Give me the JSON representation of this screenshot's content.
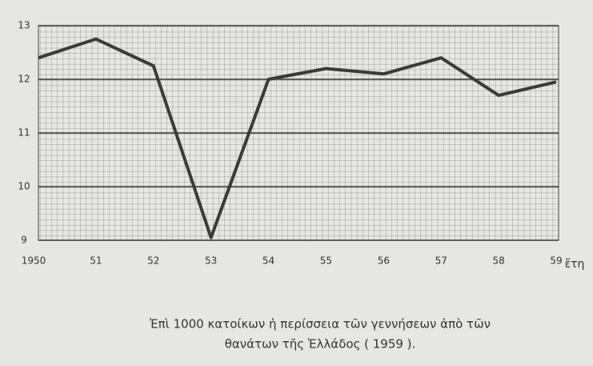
{
  "chart_data": {
    "type": "line",
    "categories": [
      "1950",
      "51",
      "52",
      "53",
      "54",
      "55",
      "56",
      "57",
      "58",
      "59"
    ],
    "x_label": "ἔτη",
    "series": [
      {
        "color": "#3a3a3a",
        "values": [
          12.4,
          12.75,
          12.25,
          9.05,
          12.0,
          12.2,
          12.1,
          12.4,
          11.7,
          11.95
        ]
      }
    ],
    "ylim": [
      9,
      13
    ],
    "yticks": [
      9,
      10,
      11,
      12,
      13
    ],
    "grid": true,
    "caption": [
      "Ἐπὶ 1000 κατοίκων ἡ περίσσεια τῶν γεννήσεων ἀπὸ τῶν",
      "θανάτων τῆς Ἑλλάδος ( 1959 )."
    ]
  }
}
